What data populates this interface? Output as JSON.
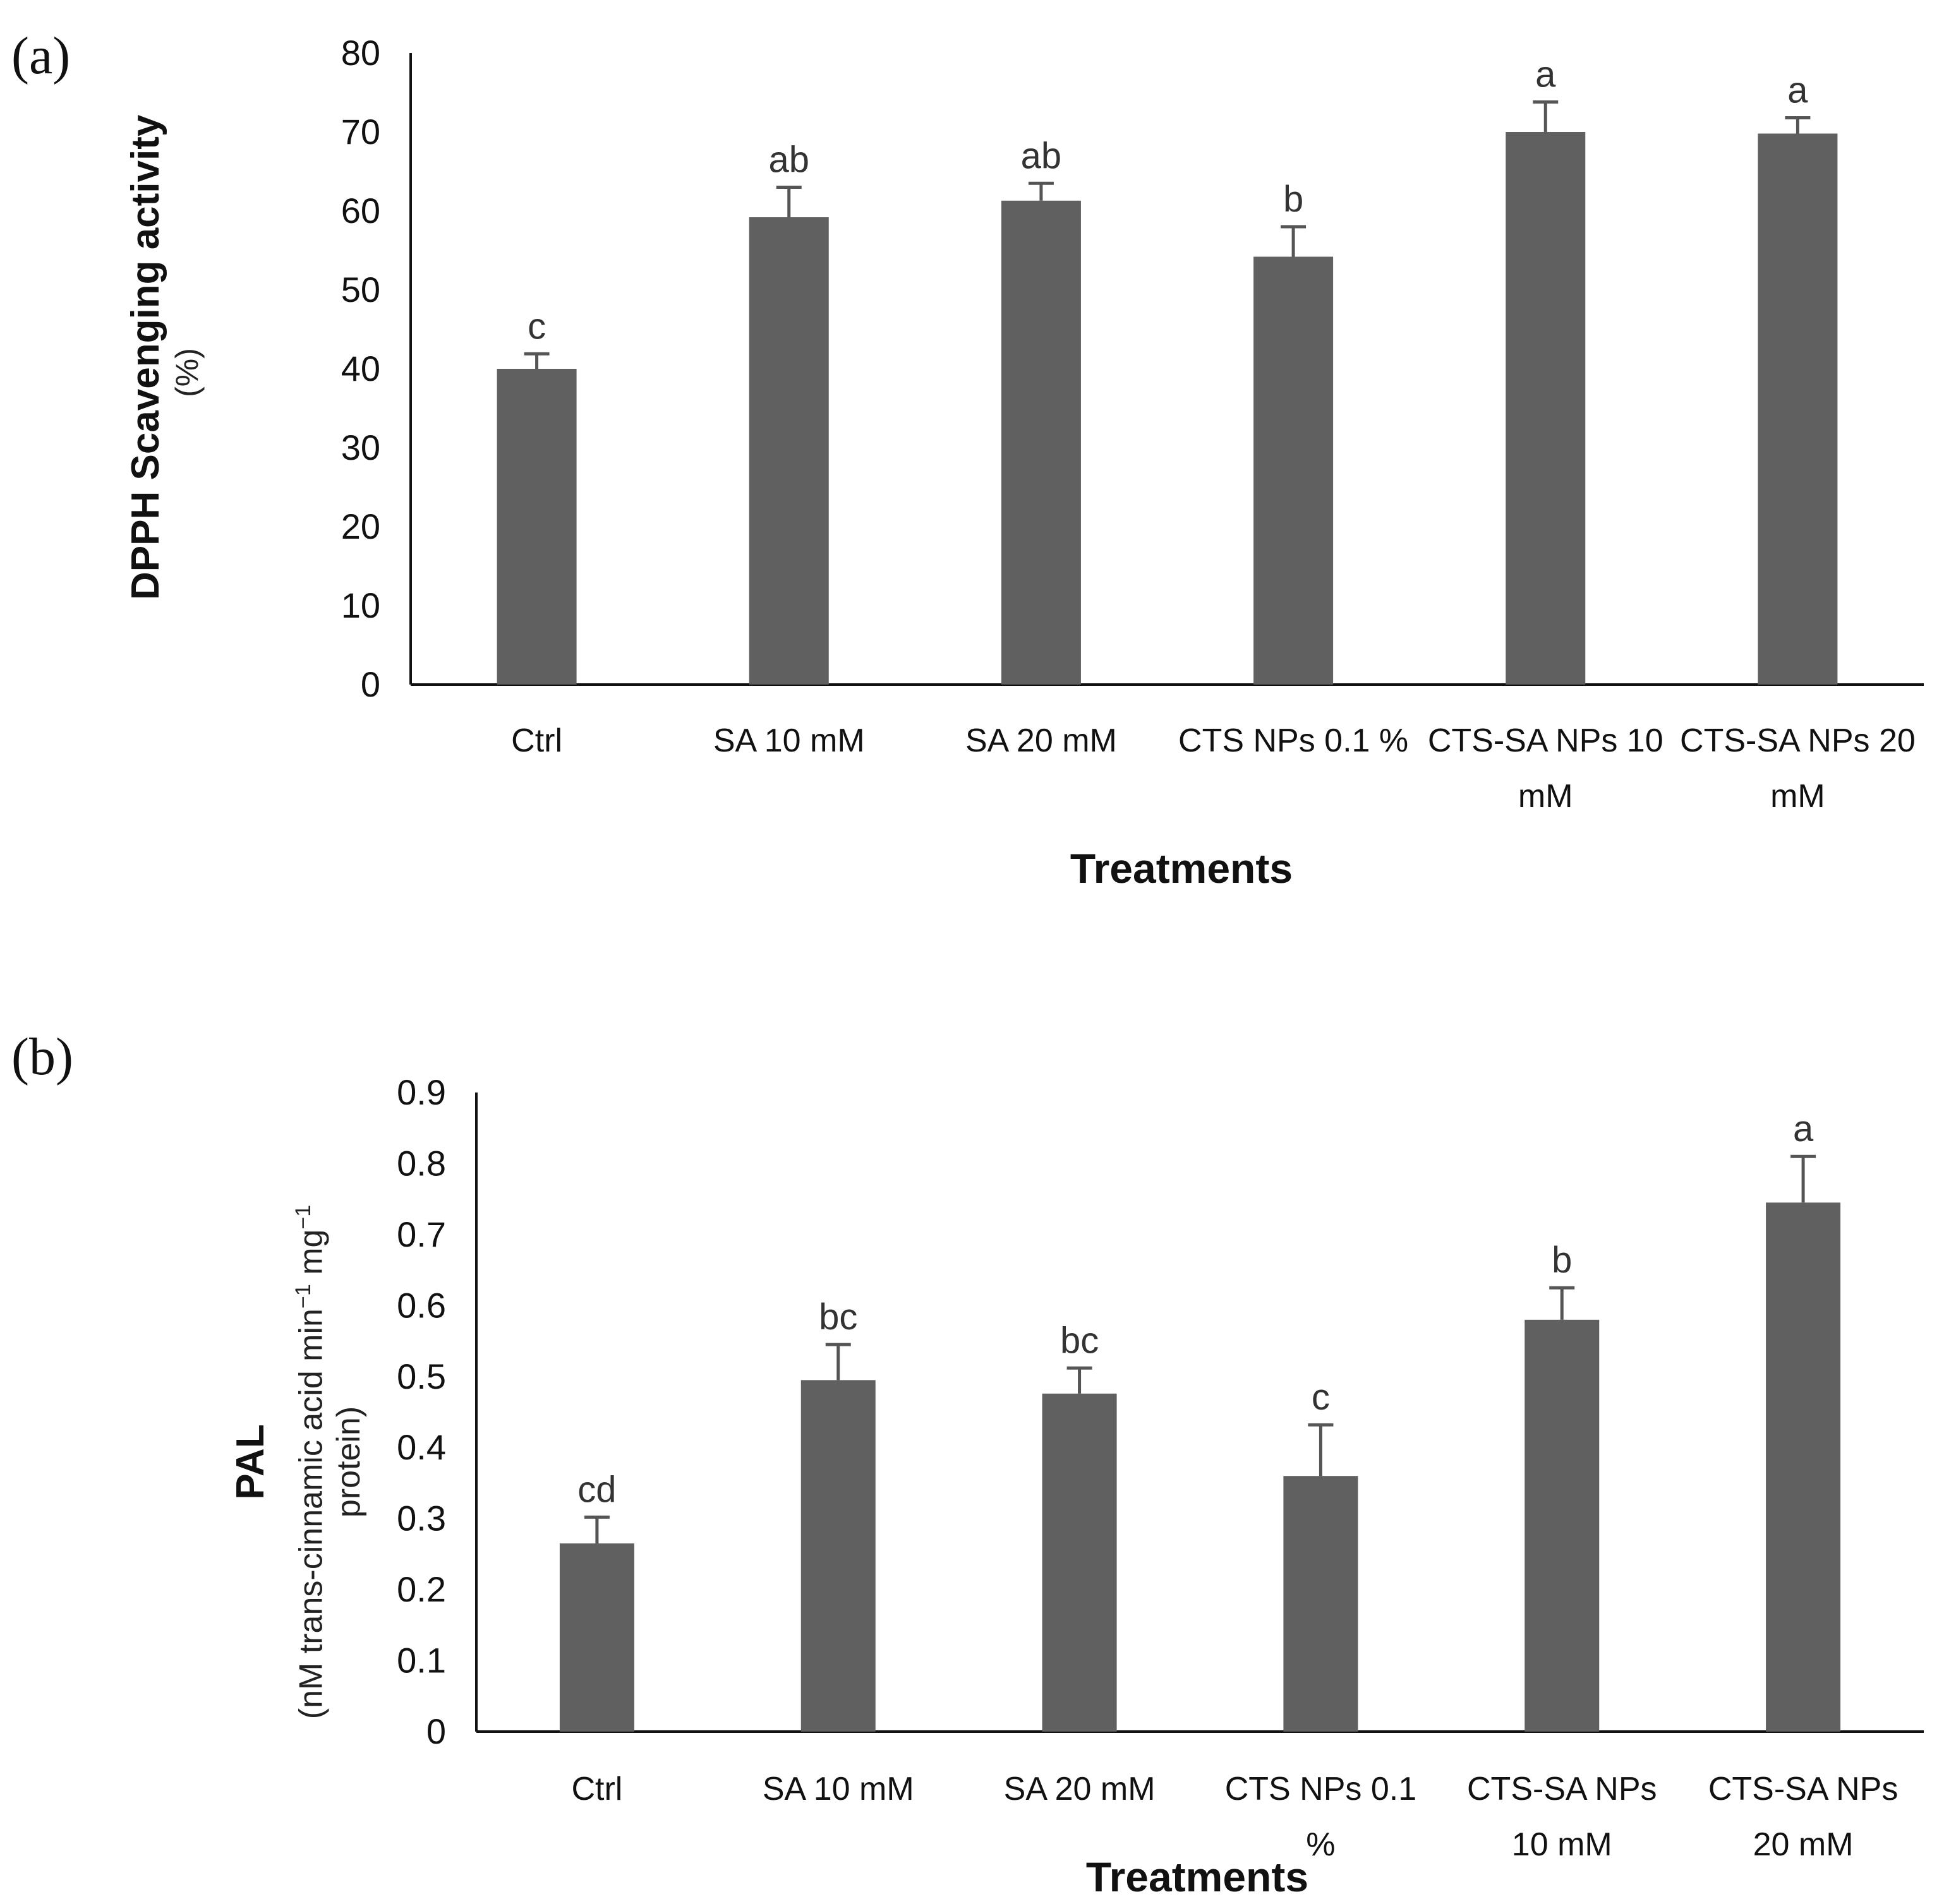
{
  "chart_data": [
    {
      "type": "bar",
      "panel": "(a)",
      "categories": [
        [
          "Ctrl"
        ],
        [
          "SA 10 mM"
        ],
        [
          "SA 20 mM"
        ],
        [
          "CTS  NPs 0.1 %"
        ],
        [
          "CTS-SA NPs 10",
          "mM"
        ],
        [
          "CTS-SA NPs 20",
          "mM"
        ]
      ],
      "values": [
        40,
        59.2,
        61.3,
        54.2,
        70,
        69.8
      ],
      "errors": [
        1.9,
        3.8,
        2.2,
        3.8,
        3.8,
        2.0
      ],
      "letters": [
        "c",
        "ab",
        "ab",
        "b",
        "a",
        "a"
      ],
      "ylim": [
        0,
        80
      ],
      "yticks": [
        0,
        10,
        20,
        30,
        40,
        50,
        60,
        70,
        80
      ],
      "ylabel": "DPPH Scavenging activity",
      "ylabel_unit": "(%)",
      "xlabel": "Treatments",
      "bar_color": "#606060"
    },
    {
      "type": "bar",
      "panel": "(b)",
      "categories": [
        [
          "Ctrl"
        ],
        [
          "SA 10 mM"
        ],
        [
          "SA 20 mM"
        ],
        [
          "CTS  NPs 0.1",
          "%"
        ],
        [
          "CTS-SA NPs",
          "10 mM"
        ],
        [
          "CTS-SA NPs",
          "20 mM"
        ]
      ],
      "values": [
        0.265,
        0.495,
        0.476,
        0.36,
        0.58,
        0.745
      ],
      "errors": [
        0.037,
        0.05,
        0.036,
        0.072,
        0.045,
        0.065
      ],
      "letters": [
        "cd",
        "bc",
        "bc",
        "c",
        "b",
        "a"
      ],
      "ylim": [
        0,
        0.9
      ],
      "yticks": [
        "0",
        "0.1",
        "0.2",
        "0.3",
        "0.4",
        "0.5",
        "0.6",
        "0.7",
        "0.8",
        "0.9"
      ],
      "ylabel": "PAL",
      "ylabel_unit_line1": "(nM trans-cinnamic acid min",
      "ylabel_unit_sup1": "−1",
      "ylabel_unit_mid": " mg",
      "ylabel_unit_sup2": "−1",
      "ylabel_unit_line2": "protein)",
      "xlabel": "Treatments",
      "bar_color": "#606060"
    }
  ]
}
